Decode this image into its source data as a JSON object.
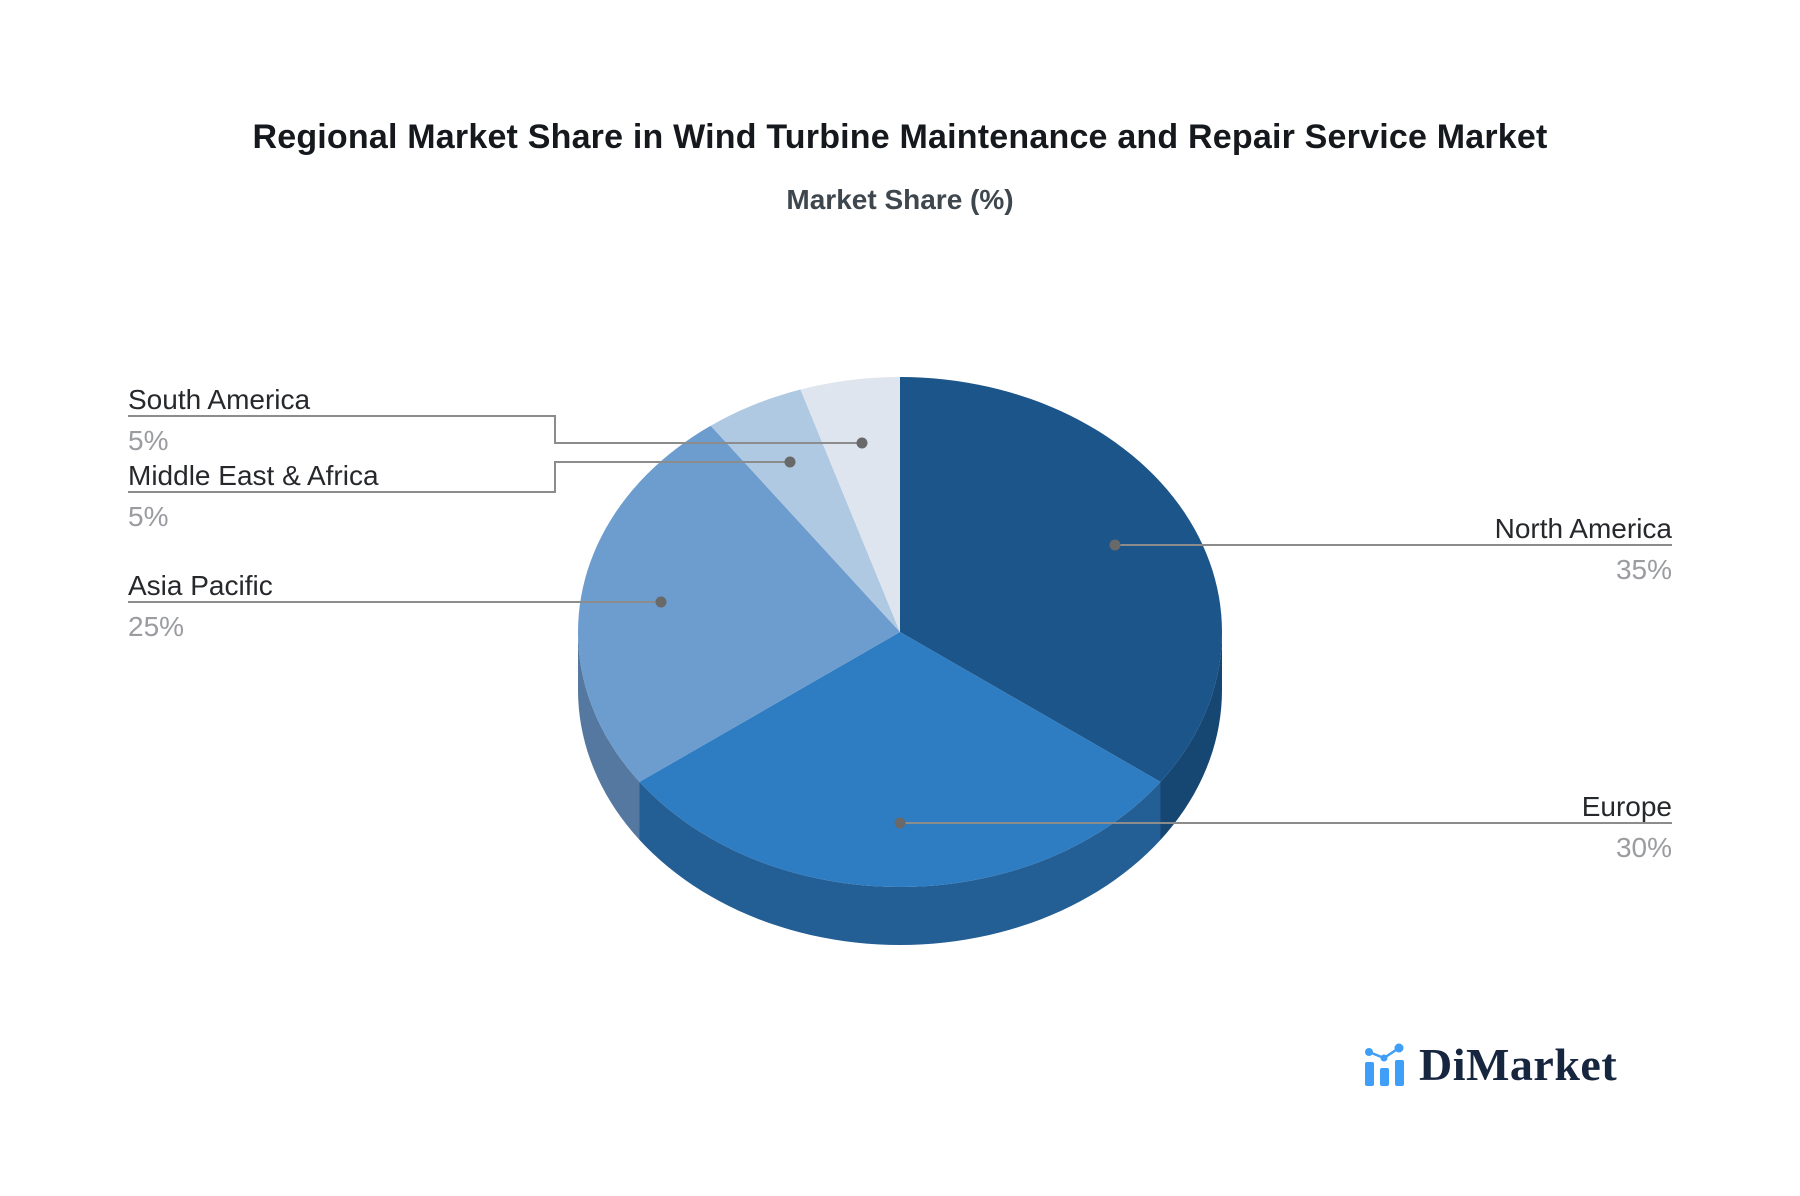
{
  "title": "Regional Market Share in Wind Turbine Maintenance and Repair Service Market",
  "subtitle": "Market Share (%)",
  "chart_data": {
    "type": "pie",
    "style": "pseudo-3d",
    "start_angle_deg": 90,
    "direction": "clockwise",
    "unit": "%",
    "title": "Regional Market Share in Wind Turbine Maintenance and Repair Service Market",
    "legend_position": "none",
    "labels_layout": "callouts-with-leader-lines",
    "slices": [
      {
        "label": "North America",
        "value": 35,
        "pct_label": "35%",
        "color": "#1b5589",
        "side_color": "#164672"
      },
      {
        "label": "Europe",
        "value": 30,
        "pct_label": "30%",
        "color": "#2e7cc2",
        "side_color": "#235e94"
      },
      {
        "label": "Asia Pacific",
        "value": 25,
        "pct_label": "25%",
        "color": "#6d9cce",
        "side_color": "#54789f"
      },
      {
        "label": "Middle East & Africa",
        "value": 5,
        "pct_label": "5%",
        "color": "#b0c9e2"
      },
      {
        "label": "South America",
        "value": 5,
        "pct_label": "5%",
        "color": "#dfe5ef"
      }
    ]
  },
  "leader_style": {
    "line_color": "#8c8c8c",
    "dot_color": "#696969"
  },
  "colors": {
    "background": "#ffffff",
    "title": "#15181c",
    "subtitle": "#3e464e",
    "label_text": "#26282b",
    "pct_text": "#9a9ca0"
  },
  "logo": {
    "text": "DiMarket",
    "icon": "bar-chart-trend-icon",
    "icon_color": "#3f9ef8",
    "text_color": "#17263f"
  }
}
